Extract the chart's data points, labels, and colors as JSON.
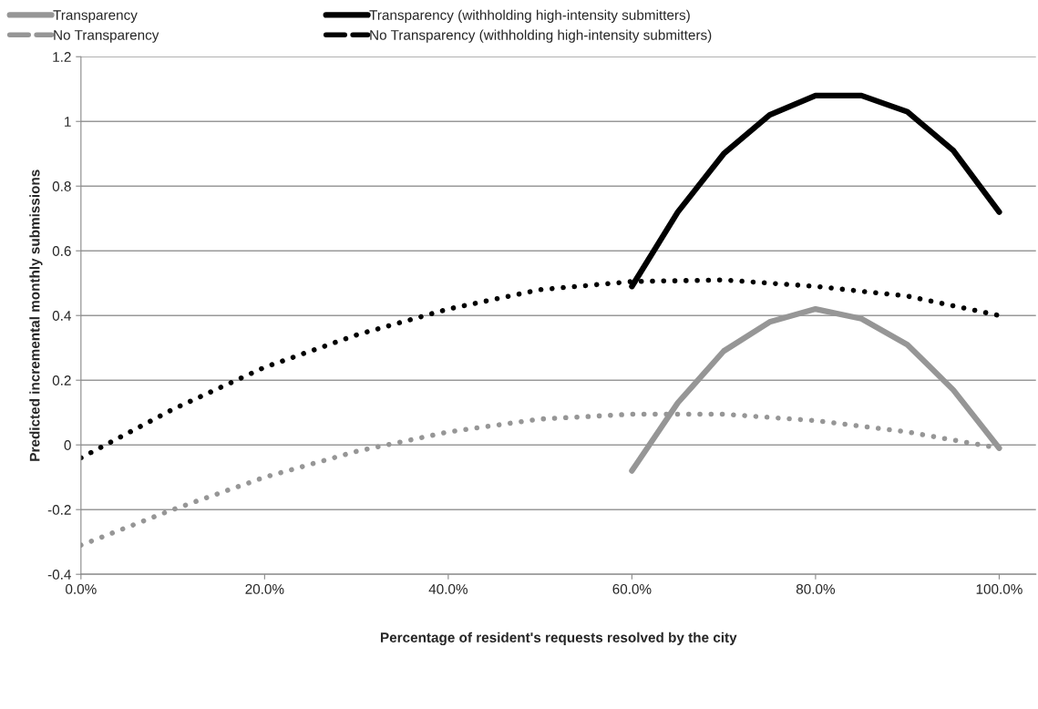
{
  "chart_data": {
    "type": "line",
    "xlabel": "Percentage of resident's requests resolved by the city",
    "ylabel": "Predicted incremental monthly submissions",
    "xlim": [
      0,
      104
    ],
    "xticks": [
      {
        "value": 0,
        "label": "0.0%"
      },
      {
        "value": 20,
        "label": "20.0%"
      },
      {
        "value": 40,
        "label": "40.0%"
      },
      {
        "value": 60,
        "label": "60.0%"
      },
      {
        "value": 80,
        "label": "80.0%"
      },
      {
        "value": 100,
        "label": "100.0%"
      }
    ],
    "ylim": [
      -0.4,
      1.2
    ],
    "yticks": [
      -0.4,
      -0.2,
      0,
      0.2,
      0.4,
      0.6,
      0.8,
      1,
      1.2
    ],
    "grid": "y",
    "legend": "top",
    "marker": "none",
    "series": [
      {
        "name": "Transparency",
        "color": "#969696",
        "line_style": "solid",
        "x": [
          60,
          65,
          70,
          75,
          80,
          85,
          90,
          95,
          100
        ],
        "values": [
          -0.08,
          0.13,
          0.29,
          0.38,
          0.42,
          0.39,
          0.31,
          0.17,
          -0.01
        ]
      },
      {
        "name": "No Transparency",
        "color": "#969696",
        "line_style": "dotted",
        "x": [
          0,
          10,
          20,
          30,
          40,
          50,
          60,
          70,
          80,
          90,
          100
        ],
        "values": [
          -0.31,
          -0.2,
          -0.1,
          -0.02,
          0.04,
          0.08,
          0.095,
          0.095,
          0.075,
          0.04,
          -0.01
        ]
      },
      {
        "name": "Transparency (withholding high-intensity submitters)",
        "color": "#000000",
        "line_style": "solid",
        "x": [
          60,
          65,
          70,
          75,
          80,
          85,
          90,
          95,
          100
        ],
        "values": [
          0.49,
          0.72,
          0.9,
          1.02,
          1.08,
          1.08,
          1.03,
          0.91,
          0.72
        ]
      },
      {
        "name": "No Transparency (withholding high-intensity submitters)",
        "color": "#000000",
        "line_style": "dotted",
        "x": [
          0,
          10,
          20,
          30,
          40,
          50,
          60,
          70,
          80,
          90,
          100
        ],
        "values": [
          -0.04,
          0.11,
          0.24,
          0.34,
          0.42,
          0.48,
          0.505,
          0.51,
          0.49,
          0.46,
          0.4
        ]
      }
    ]
  }
}
